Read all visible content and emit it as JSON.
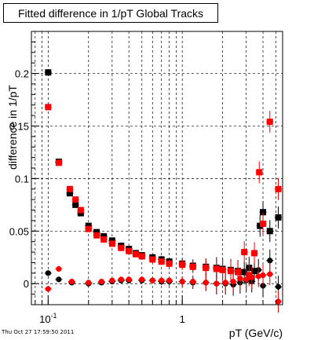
{
  "chart_data": {
    "type": "scatter",
    "title": "Fitted difference in 1/pT  Global Tracks",
    "xlabel": "pT (GeV/c)",
    "ylabel": "difference in 1/pT",
    "x_scale": "log",
    "xlim": [
      0.075,
      5.6
    ],
    "ylim": [
      -0.02,
      0.24
    ],
    "grid": true,
    "x_ticks": [
      {
        "value": 0.1,
        "label": "10^-1"
      },
      {
        "value": 1,
        "label": "1"
      }
    ],
    "y_ticks": [
      0,
      0.05,
      0.1,
      0.15,
      0.2
    ],
    "y_tick_labels": [
      "0",
      "0.05",
      "0.1",
      "0.15",
      "0.2"
    ],
    "series": [
      {
        "color": "#000000",
        "marker": "square",
        "points": [
          {
            "x": 0.1,
            "y": 0.201
          },
          {
            "x": 0.12,
            "y": 0.116
          },
          {
            "x": 0.145,
            "y": 0.086
          },
          {
            "x": 0.16,
            "y": 0.075
          },
          {
            "x": 0.175,
            "y": 0.067
          },
          {
            "x": 0.2,
            "y": 0.055
          },
          {
            "x": 0.23,
            "y": 0.049
          },
          {
            "x": 0.26,
            "y": 0.045
          },
          {
            "x": 0.3,
            "y": 0.041
          },
          {
            "x": 0.35,
            "y": 0.036
          },
          {
            "x": 0.4,
            "y": 0.033
          },
          {
            "x": 0.45,
            "y": 0.029
          },
          {
            "x": 0.5,
            "y": 0.027
          },
          {
            "x": 0.6,
            "y": 0.025
          },
          {
            "x": 0.7,
            "y": 0.023
          },
          {
            "x": 0.8,
            "y": 0.021
          },
          {
            "x": 1.0,
            "y": 0.019
          },
          {
            "x": 1.2,
            "y": 0.017
          },
          {
            "x": 1.5,
            "y": 0.016
          },
          {
            "x": 1.8,
            "y": 0.015
          },
          {
            "x": 2.0,
            "y": 0.014
          },
          {
            "x": 2.3,
            "y": 0.013
          },
          {
            "x": 2.6,
            "y": 0.012
          },
          {
            "x": 2.9,
            "y": 0.011
          },
          {
            "x": 3.15,
            "y": 0.015
          },
          {
            "x": 3.45,
            "y": 0.012
          },
          {
            "x": 3.8,
            "y": 0.055
          },
          {
            "x": 4.0,
            "y": 0.068
          },
          {
            "x": 4.5,
            "y": 0.05
          },
          {
            "x": 5.2,
            "y": 0.063
          }
        ]
      },
      {
        "color": "#ff0000",
        "marker": "square",
        "points": [
          {
            "x": 0.1,
            "y": 0.168
          },
          {
            "x": 0.12,
            "y": 0.115
          },
          {
            "x": 0.145,
            "y": 0.09
          },
          {
            "x": 0.16,
            "y": 0.08
          },
          {
            "x": 0.175,
            "y": 0.07
          },
          {
            "x": 0.2,
            "y": 0.052
          },
          {
            "x": 0.23,
            "y": 0.046
          },
          {
            "x": 0.26,
            "y": 0.042
          },
          {
            "x": 0.3,
            "y": 0.038
          },
          {
            "x": 0.35,
            "y": 0.034
          },
          {
            "x": 0.4,
            "y": 0.031
          },
          {
            "x": 0.45,
            "y": 0.028
          },
          {
            "x": 0.5,
            "y": 0.026
          },
          {
            "x": 0.6,
            "y": 0.023
          },
          {
            "x": 0.7,
            "y": 0.021
          },
          {
            "x": 0.8,
            "y": 0.019
          },
          {
            "x": 1.0,
            "y": 0.018
          },
          {
            "x": 1.2,
            "y": 0.016
          },
          {
            "x": 1.5,
            "y": 0.015
          },
          {
            "x": 1.8,
            "y": 0.014
          },
          {
            "x": 2.0,
            "y": 0.013
          },
          {
            "x": 2.3,
            "y": 0.012
          },
          {
            "x": 2.6,
            "y": 0.011
          },
          {
            "x": 2.9,
            "y": 0.03
          },
          {
            "x": 3.15,
            "y": 0.008
          },
          {
            "x": 3.45,
            "y": 0.029
          },
          {
            "x": 3.75,
            "y": 0.106
          },
          {
            "x": 4.0,
            "y": 0.057
          },
          {
            "x": 4.5,
            "y": 0.154
          },
          {
            "x": 5.2,
            "y": 0.09
          }
        ]
      },
      {
        "color": "#000000",
        "marker": "circle",
        "points": [
          {
            "x": 0.1,
            "y": 0.01
          },
          {
            "x": 0.12,
            "y": 0.004
          },
          {
            "x": 0.15,
            "y": 0.001
          },
          {
            "x": 0.2,
            "y": 0.0
          },
          {
            "x": 0.25,
            "y": 0.001
          },
          {
            "x": 0.3,
            "y": 0.002
          },
          {
            "x": 0.35,
            "y": 0.003
          },
          {
            "x": 0.4,
            "y": 0.003
          },
          {
            "x": 0.5,
            "y": 0.003
          },
          {
            "x": 0.6,
            "y": 0.003
          },
          {
            "x": 0.7,
            "y": 0.002
          },
          {
            "x": 0.8,
            "y": 0.002
          },
          {
            "x": 1.0,
            "y": 0.002
          },
          {
            "x": 1.2,
            "y": 0.001
          },
          {
            "x": 1.5,
            "y": 0.001
          },
          {
            "x": 1.8,
            "y": 0.0
          },
          {
            "x": 2.1,
            "y": 0.0
          },
          {
            "x": 2.4,
            "y": -0.001
          },
          {
            "x": 2.7,
            "y": 0.001
          },
          {
            "x": 3.0,
            "y": 0.003
          },
          {
            "x": 3.3,
            "y": 0.002
          },
          {
            "x": 3.7,
            "y": 0.013
          },
          {
            "x": 4.0,
            "y": -0.002
          },
          {
            "x": 4.5,
            "y": 0.022
          },
          {
            "x": 5.2,
            "y": -0.003
          }
        ]
      },
      {
        "color": "#ff0000",
        "marker": "circle",
        "points": [
          {
            "x": 0.1,
            "y": -0.005
          },
          {
            "x": 0.12,
            "y": 0.014
          },
          {
            "x": 0.15,
            "y": 0.002
          },
          {
            "x": 0.2,
            "y": 0.001
          },
          {
            "x": 0.25,
            "y": 0.002
          },
          {
            "x": 0.3,
            "y": 0.003
          },
          {
            "x": 0.35,
            "y": 0.004
          },
          {
            "x": 0.4,
            "y": 0.004
          },
          {
            "x": 0.5,
            "y": 0.004
          },
          {
            "x": 0.6,
            "y": 0.003
          },
          {
            "x": 0.7,
            "y": 0.003
          },
          {
            "x": 0.8,
            "y": 0.003
          },
          {
            "x": 1.0,
            "y": 0.002
          },
          {
            "x": 1.2,
            "y": 0.002
          },
          {
            "x": 1.5,
            "y": 0.001
          },
          {
            "x": 1.8,
            "y": 0.0
          },
          {
            "x": 2.1,
            "y": 0.001
          },
          {
            "x": 2.4,
            "y": 0.002
          },
          {
            "x": 2.7,
            "y": 0.005
          },
          {
            "x": 3.0,
            "y": 0.004
          },
          {
            "x": 3.3,
            "y": 0.006
          },
          {
            "x": 3.7,
            "y": 0.007
          },
          {
            "x": 4.0,
            "y": 0.008
          },
          {
            "x": 4.5,
            "y": 0.009
          },
          {
            "x": 5.2,
            "y": -0.017
          }
        ]
      }
    ]
  },
  "footer": {
    "timestamp": "Thu Oct 27 17:59:50 2011"
  }
}
